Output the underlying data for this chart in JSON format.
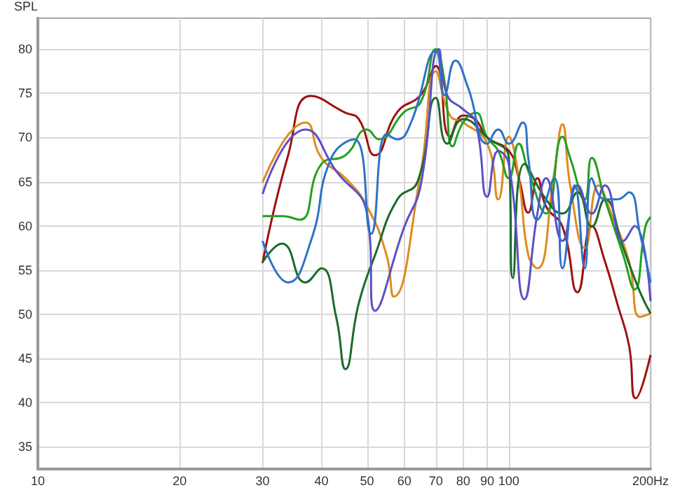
{
  "chart_data": {
    "type": "line",
    "ylabel": "SPL",
    "log": "x",
    "grid": true,
    "xlim": [
      10,
      200
    ],
    "xticks": [
      10,
      20,
      30,
      40,
      50,
      60,
      70,
      80,
      90,
      100,
      {
        "value": 200,
        "label": "200Hz"
      }
    ],
    "ylim": [
      32.5,
      83.5
    ],
    "yticks": [
      35,
      40,
      45,
      50,
      55,
      60,
      65,
      70,
      75,
      80
    ],
    "series": [
      {
        "color": "#a01010",
        "x": [
          30,
          34,
          38,
          45,
          48,
          52,
          58,
          65,
          70,
          75,
          80,
          85,
          90,
          100,
          105,
          110,
          115,
          120,
          130,
          140,
          150,
          160,
          170,
          180,
          186,
          200
        ],
        "values": [
          55.8,
          68,
          74.7,
          72.8,
          72.1,
          68,
          72.9,
          74.8,
          78.1,
          70.1,
          72.5,
          72,
          70,
          68.5,
          65.4,
          61.5,
          65.4,
          62.2,
          59.9,
          52.5,
          60,
          56,
          51.2,
          46.5,
          40.5,
          45.4
        ]
      },
      {
        "color": "#e08a1e",
        "x": [
          30,
          37,
          40,
          45,
          50,
          55,
          57,
          65,
          70,
          75,
          80,
          90,
          95,
          100,
          105,
          110,
          115,
          125,
          130,
          135,
          145,
          155,
          165,
          180,
          190,
          200
        ],
        "values": [
          64.9,
          71.7,
          67.7,
          65.4,
          62.2,
          56.7,
          52,
          66,
          77.5,
          72.5,
          71.7,
          69.3,
          63,
          70.1,
          65.4,
          56.7,
          55.2,
          66.2,
          71.5,
          64.6,
          57.5,
          64.6,
          61.4,
          56,
          49.7,
          50.1
        ]
      },
      {
        "color": "#22a022",
        "x": [
          30,
          33,
          36,
          40,
          45,
          50,
          53,
          60,
          65,
          70,
          73,
          76,
          80,
          85,
          90,
          95,
          100,
          105,
          110,
          120,
          130,
          135,
          145,
          150,
          160,
          175,
          185,
          195,
          200
        ],
        "values": [
          61.1,
          61.1,
          60.7,
          67,
          68,
          70.9,
          69.8,
          72.9,
          74,
          80,
          76.4,
          69,
          71.7,
          72.8,
          70,
          68.5,
          65.4,
          69.3,
          66.2,
          61.4,
          70.1,
          67.7,
          63,
          67.7,
          63,
          56.7,
          52.8,
          59.9,
          61
        ]
      },
      {
        "color": "#1a6b2a",
        "x": [
          30,
          33,
          37,
          40,
          43,
          45,
          48,
          52,
          58,
          64,
          70,
          74,
          80,
          90,
          100,
          102,
          108,
          120,
          130,
          140,
          150,
          160,
          175,
          190,
          200
        ],
        "values": [
          55.9,
          58,
          53.6,
          55.2,
          49.7,
          43.8,
          51.2,
          56.7,
          63,
          65,
          74.5,
          69.3,
          72.1,
          70,
          67.7,
          54.1,
          67,
          63,
          61.4,
          63.8,
          59.9,
          63,
          57.5,
          52.5,
          50.1
        ]
      },
      {
        "color": "#5a50c8",
        "x": [
          30,
          37,
          43,
          50,
          52,
          60,
          65,
          71,
          74,
          80,
          85,
          90,
          95,
          100,
          108,
          115,
          120,
          130,
          140,
          150,
          160,
          175,
          185,
          200
        ],
        "values": [
          63.6,
          70.9,
          66.2,
          61.4,
          50.4,
          59.9,
          64.6,
          80,
          74.8,
          73.2,
          71.7,
          63.3,
          68.5,
          67,
          51.7,
          61.4,
          65.4,
          58.3,
          64.6,
          61.4,
          64.6,
          58.3,
          60,
          51.5
        ]
      },
      {
        "color": "#2e72c8",
        "x": [
          30,
          34,
          38,
          42,
          47,
          51,
          55,
          58,
          62,
          70,
          73,
          77,
          82,
          90,
          95,
          100,
          107,
          110,
          115,
          125,
          130,
          138,
          145,
          150,
          160,
          170,
          180,
          190,
          200
        ],
        "values": [
          58.3,
          53.6,
          58.3,
          67.7,
          69.8,
          59.1,
          70.4,
          69.8,
          71.7,
          79.8,
          74.8,
          78.7,
          75.6,
          69.3,
          70.9,
          69.3,
          71.7,
          67.7,
          60.7,
          65.4,
          55.2,
          64.6,
          55.2,
          65.4,
          63,
          63,
          63.8,
          59.1,
          53.6
        ]
      }
    ]
  }
}
